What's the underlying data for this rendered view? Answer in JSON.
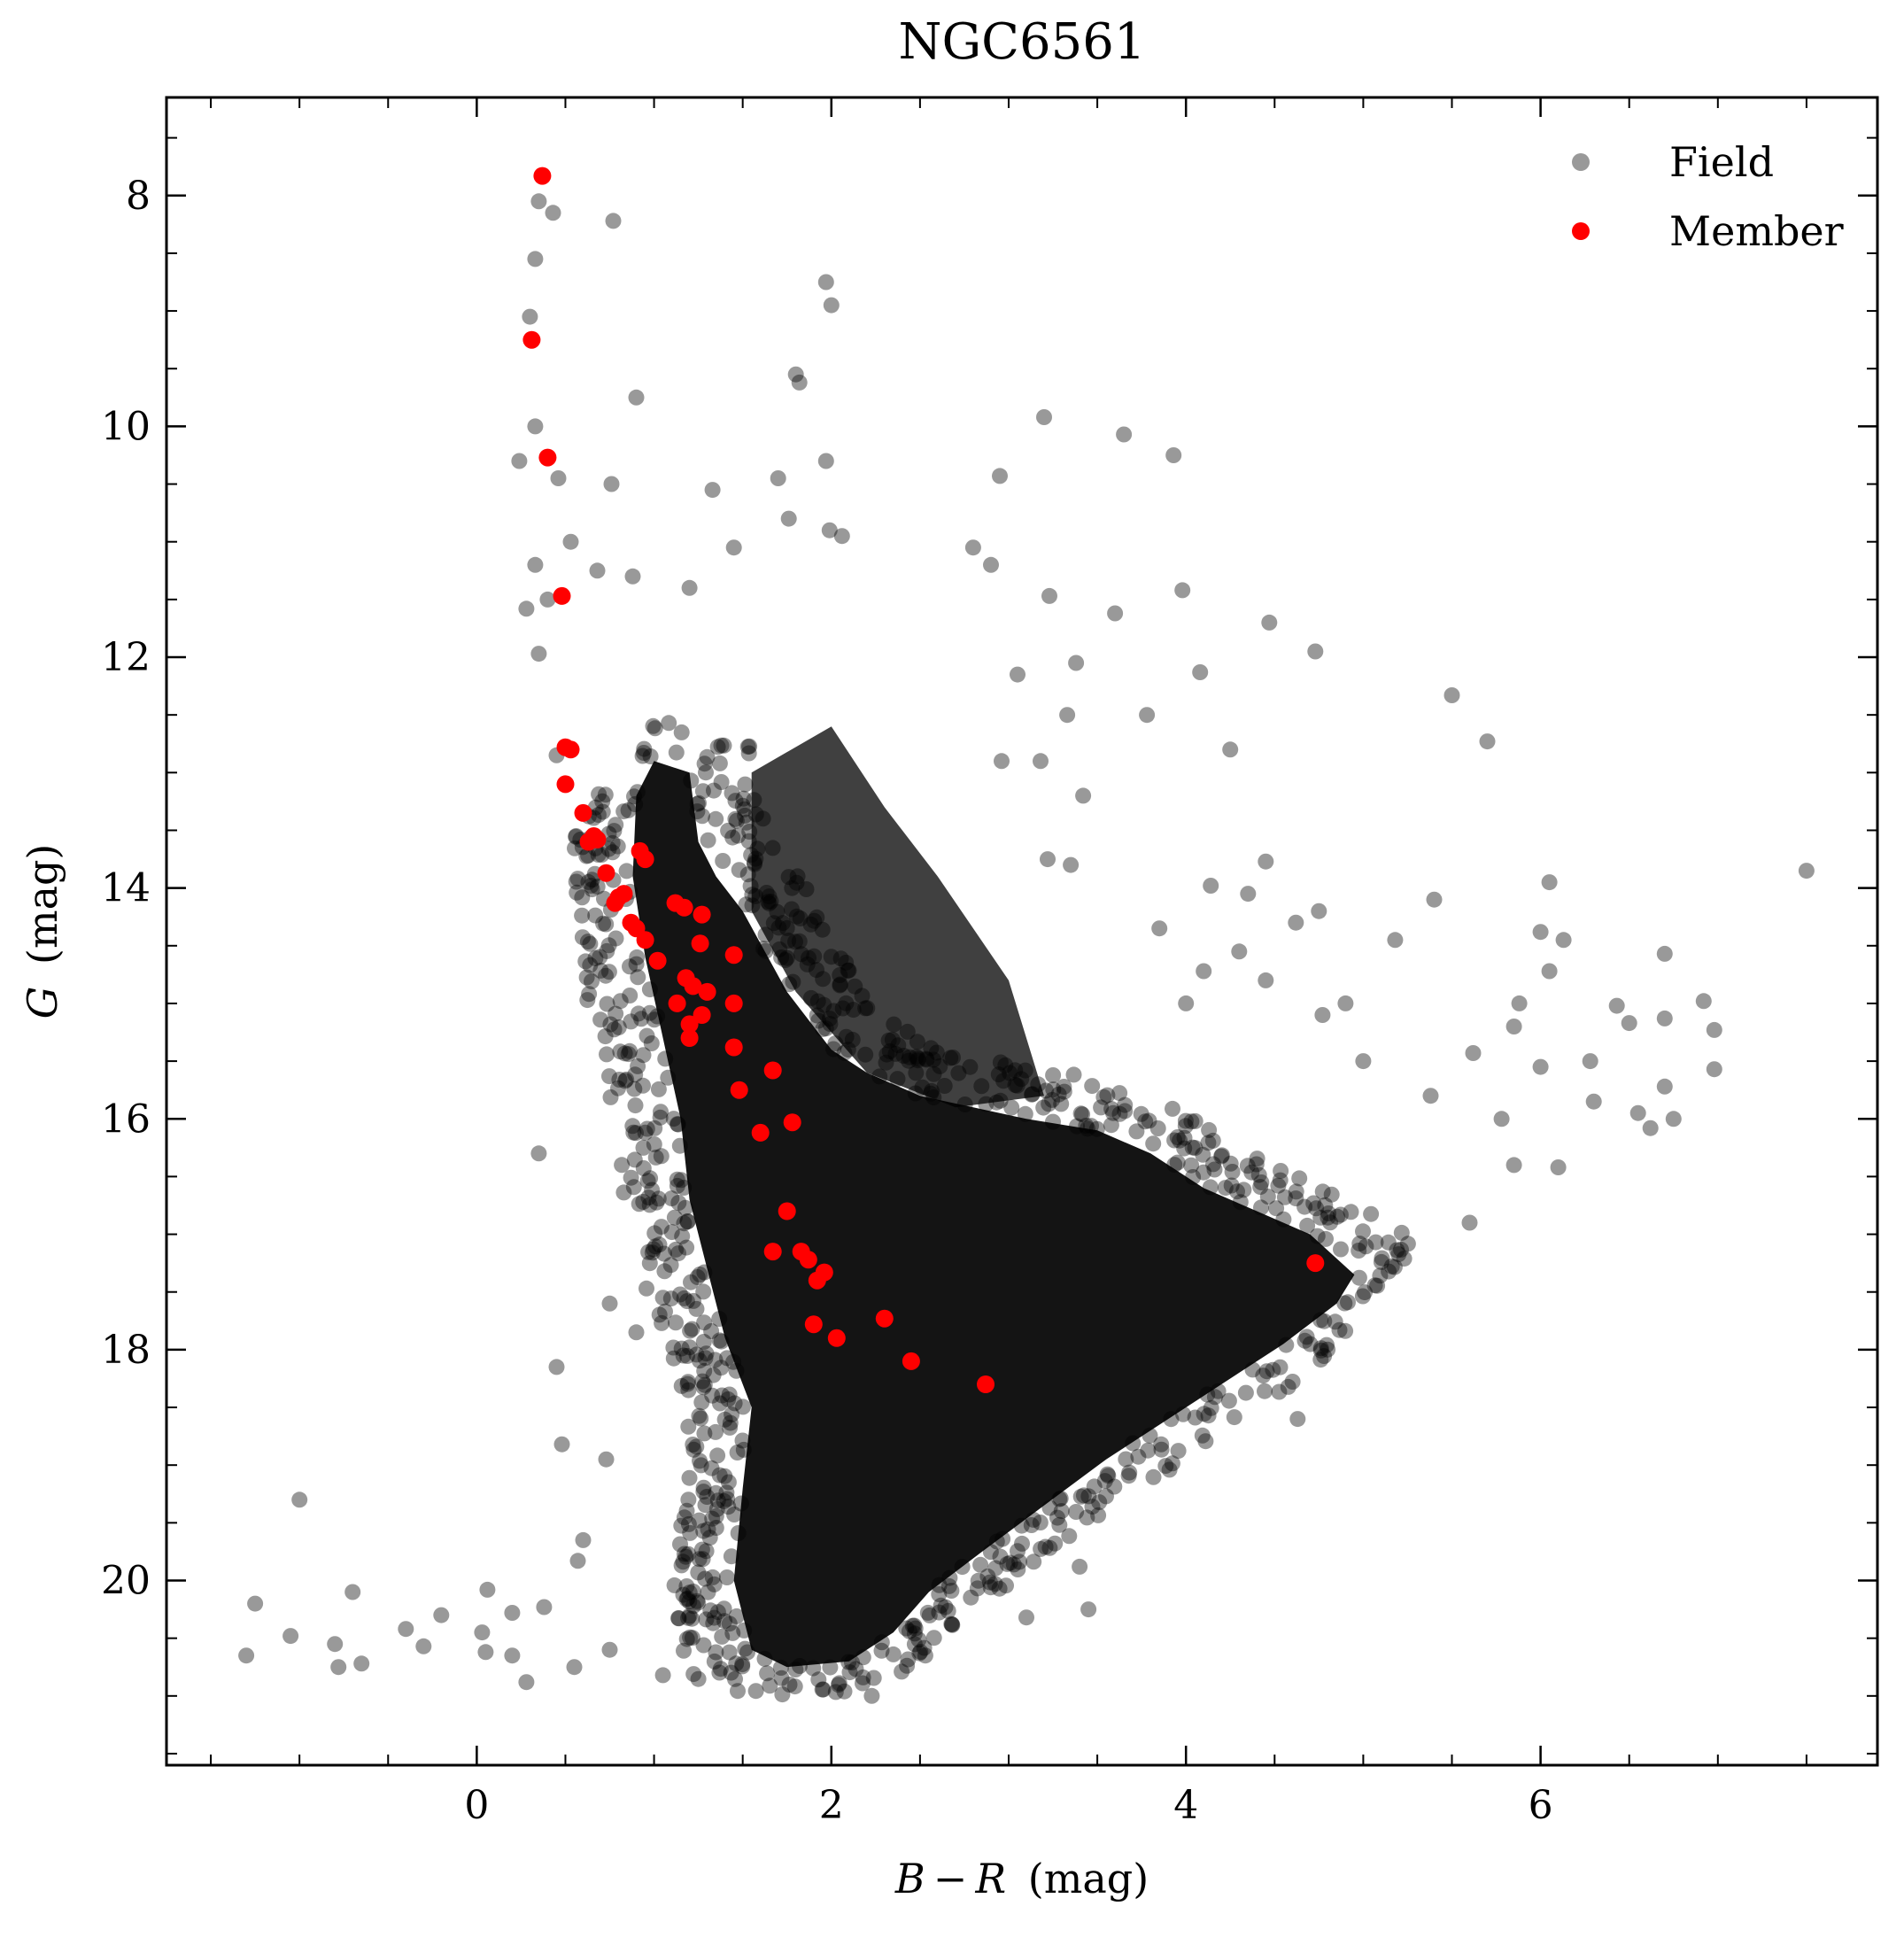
{
  "chart_data": {
    "type": "scatter",
    "title": "NGC6561",
    "xlabel": {
      "var": "B − R",
      "unit": "(mag)"
    },
    "ylabel": {
      "var": "G",
      "unit": "(mag)"
    },
    "xlim": [
      -1.75,
      7.9
    ],
    "ylim": [
      21.6,
      7.15
    ],
    "y_inverted": true,
    "grid": false,
    "legend_position": "top-right",
    "x_ticks": [
      0,
      2,
      4,
      6
    ],
    "x_tick_labels": [
      "0",
      "2",
      "4",
      "6"
    ],
    "y_ticks": [
      8,
      10,
      12,
      14,
      16,
      18,
      20
    ],
    "y_tick_labels": [
      "8",
      "10",
      "12",
      "14",
      "16",
      "18",
      "20"
    ],
    "series": [
      {
        "name": "Field",
        "color": "#000000",
        "opacity": 0.4,
        "representative_points": [
          [
            0.35,
            8.05
          ],
          [
            0.43,
            8.15
          ],
          [
            0.77,
            8.22
          ],
          [
            0.33,
            8.55
          ],
          [
            1.97,
            8.75
          ],
          [
            2.0,
            8.95
          ],
          [
            0.3,
            9.05
          ],
          [
            1.8,
            9.55
          ],
          [
            1.82,
            9.62
          ],
          [
            0.9,
            9.75
          ],
          [
            3.2,
            9.92
          ],
          [
            3.65,
            10.07
          ],
          [
            0.33,
            10.0
          ],
          [
            0.24,
            10.3
          ],
          [
            1.97,
            10.3
          ],
          [
            3.93,
            10.25
          ],
          [
            2.95,
            10.43
          ],
          [
            0.46,
            10.45
          ],
          [
            0.76,
            10.5
          ],
          [
            1.33,
            10.55
          ],
          [
            1.7,
            10.45
          ],
          [
            1.76,
            10.8
          ],
          [
            1.99,
            10.9
          ],
          [
            2.06,
            10.95
          ],
          [
            1.45,
            11.05
          ],
          [
            0.53,
            11.0
          ],
          [
            2.8,
            11.05
          ],
          [
            0.33,
            11.2
          ],
          [
            0.68,
            11.25
          ],
          [
            2.9,
            11.2
          ],
          [
            0.88,
            11.3
          ],
          [
            1.2,
            11.4
          ],
          [
            3.23,
            11.47
          ],
          [
            3.98,
            11.42
          ],
          [
            0.28,
            11.58
          ],
          [
            0.4,
            11.5
          ],
          [
            3.6,
            11.62
          ],
          [
            4.47,
            11.7
          ],
          [
            4.73,
            11.95
          ],
          [
            0.35,
            11.97
          ],
          [
            3.05,
            12.15
          ],
          [
            4.08,
            12.13
          ],
          [
            3.38,
            12.05
          ],
          [
            5.5,
            12.33
          ],
          [
            3.33,
            12.5
          ],
          [
            3.78,
            12.5
          ],
          [
            5.7,
            12.73
          ],
          [
            4.25,
            12.8
          ],
          [
            0.45,
            12.85
          ],
          [
            2.96,
            12.9
          ],
          [
            3.18,
            12.9
          ],
          [
            3.42,
            13.2
          ],
          [
            0.56,
            13.55
          ],
          [
            3.22,
            13.75
          ],
          [
            3.35,
            13.8
          ],
          [
            4.45,
            13.77
          ],
          [
            7.5,
            13.85
          ],
          [
            4.14,
            13.98
          ],
          [
            6.05,
            13.95
          ],
          [
            4.35,
            14.05
          ],
          [
            4.75,
            14.2
          ],
          [
            5.4,
            14.1
          ],
          [
            4.62,
            14.3
          ],
          [
            3.85,
            14.35
          ],
          [
            6.0,
            14.38
          ],
          [
            6.13,
            14.45
          ],
          [
            5.18,
            14.45
          ],
          [
            4.3,
            14.55
          ],
          [
            6.7,
            14.57
          ],
          [
            6.05,
            14.72
          ],
          [
            4.1,
            14.72
          ],
          [
            4.45,
            14.8
          ],
          [
            4.0,
            15.0
          ],
          [
            4.9,
            15.0
          ],
          [
            5.88,
            15.0
          ],
          [
            6.43,
            15.02
          ],
          [
            6.92,
            14.98
          ],
          [
            4.77,
            15.1
          ],
          [
            5.85,
            15.2
          ],
          [
            6.5,
            15.17
          ],
          [
            6.98,
            15.23
          ],
          [
            6.7,
            15.13
          ],
          [
            5.0,
            15.5
          ],
          [
            5.62,
            15.43
          ],
          [
            6.28,
            15.5
          ],
          [
            6.0,
            15.55
          ],
          [
            6.98,
            15.57
          ],
          [
            6.7,
            15.72
          ],
          [
            5.38,
            15.8
          ],
          [
            6.3,
            15.85
          ],
          [
            6.55,
            15.95
          ],
          [
            6.75,
            16.0
          ],
          [
            6.62,
            16.08
          ],
          [
            5.78,
            16.0
          ],
          [
            0.35,
            16.3
          ],
          [
            5.85,
            16.4
          ],
          [
            6.1,
            16.42
          ],
          [
            5.6,
            16.9
          ],
          [
            0.75,
            17.6
          ],
          [
            1.05,
            17.55
          ],
          [
            0.9,
            17.85
          ],
          [
            4.63,
            18.6
          ],
          [
            0.45,
            18.15
          ],
          [
            0.48,
            18.82
          ],
          [
            0.73,
            18.95
          ],
          [
            -1.0,
            19.3
          ],
          [
            0.6,
            19.65
          ],
          [
            0.57,
            19.83
          ],
          [
            -1.25,
            20.2
          ],
          [
            -0.7,
            20.1
          ],
          [
            0.06,
            20.08
          ],
          [
            -0.2,
            20.3
          ],
          [
            0.2,
            20.28
          ],
          [
            0.38,
            20.23
          ],
          [
            -1.05,
            20.48
          ],
          [
            -0.8,
            20.55
          ],
          [
            -0.4,
            20.42
          ],
          [
            -0.3,
            20.57
          ],
          [
            0.03,
            20.45
          ],
          [
            -1.3,
            20.65
          ],
          [
            -0.78,
            20.75
          ],
          [
            -0.65,
            20.72
          ],
          [
            0.05,
            20.62
          ],
          [
            0.2,
            20.65
          ],
          [
            0.28,
            20.88
          ],
          [
            0.55,
            20.75
          ],
          [
            0.75,
            20.6
          ],
          [
            1.05,
            20.82
          ],
          [
            2.53,
            20.65
          ],
          [
            3.1,
            20.32
          ],
          [
            3.45,
            20.25
          ],
          [
            3.4,
            19.88
          ]
        ]
      },
      {
        "name": "Member",
        "color": "#ff0000",
        "opacity": 1.0,
        "points": [
          [
            0.37,
            7.83
          ],
          [
            0.31,
            9.25
          ],
          [
            0.4,
            10.27
          ],
          [
            0.48,
            11.47
          ],
          [
            0.5,
            12.78
          ],
          [
            0.53,
            12.8
          ],
          [
            0.5,
            13.1
          ],
          [
            0.6,
            13.35
          ],
          [
            0.63,
            13.6
          ],
          [
            0.66,
            13.55
          ],
          [
            0.68,
            13.58
          ],
          [
            0.73,
            13.87
          ],
          [
            0.92,
            13.68
          ],
          [
            0.95,
            13.75
          ],
          [
            0.78,
            14.13
          ],
          [
            0.8,
            14.08
          ],
          [
            0.83,
            14.05
          ],
          [
            0.87,
            14.3
          ],
          [
            0.9,
            14.35
          ],
          [
            0.95,
            14.45
          ],
          [
            1.02,
            14.63
          ],
          [
            1.12,
            14.13
          ],
          [
            1.17,
            14.17
          ],
          [
            1.27,
            14.23
          ],
          [
            1.26,
            14.48
          ],
          [
            1.45,
            14.58
          ],
          [
            1.18,
            14.78
          ],
          [
            1.22,
            14.85
          ],
          [
            1.3,
            14.9
          ],
          [
            1.45,
            15.0
          ],
          [
            1.13,
            15.0
          ],
          [
            1.2,
            15.18
          ],
          [
            1.27,
            15.1
          ],
          [
            1.2,
            15.3
          ],
          [
            1.45,
            15.38
          ],
          [
            1.48,
            15.75
          ],
          [
            1.67,
            15.58
          ],
          [
            1.78,
            16.03
          ],
          [
            1.6,
            16.12
          ],
          [
            1.75,
            16.8
          ],
          [
            1.67,
            17.15
          ],
          [
            1.83,
            17.15
          ],
          [
            1.87,
            17.22
          ],
          [
            1.92,
            17.4
          ],
          [
            1.96,
            17.33
          ],
          [
            1.9,
            17.78
          ],
          [
            2.03,
            17.9
          ],
          [
            2.3,
            17.73
          ],
          [
            2.45,
            18.1
          ],
          [
            2.87,
            18.3
          ],
          [
            4.73,
            17.25
          ]
        ]
      }
    ],
    "dense_region_polygon": [
      [
        0.9,
        13.2
      ],
      [
        1.0,
        12.9
      ],
      [
        1.2,
        13.0
      ],
      [
        1.25,
        13.6
      ],
      [
        1.35,
        13.9
      ],
      [
        1.5,
        14.2
      ],
      [
        1.75,
        14.9
      ],
      [
        2.0,
        15.4
      ],
      [
        2.2,
        15.6
      ],
      [
        2.5,
        15.8
      ],
      [
        2.8,
        15.9
      ],
      [
        3.1,
        16.0
      ],
      [
        3.5,
        16.1
      ],
      [
        3.8,
        16.3
      ],
      [
        4.1,
        16.6
      ],
      [
        4.4,
        16.8
      ],
      [
        4.7,
        17.0
      ],
      [
        4.95,
        17.35
      ],
      [
        4.85,
        17.6
      ],
      [
        4.55,
        17.95
      ],
      [
        4.2,
        18.3
      ],
      [
        3.85,
        18.65
      ],
      [
        3.55,
        18.95
      ],
      [
        3.2,
        19.35
      ],
      [
        2.85,
        19.75
      ],
      [
        2.55,
        20.1
      ],
      [
        2.35,
        20.45
      ],
      [
        2.1,
        20.7
      ],
      [
        1.75,
        20.75
      ],
      [
        1.55,
        20.6
      ],
      [
        1.45,
        20.0
      ],
      [
        1.5,
        19.2
      ],
      [
        1.55,
        18.5
      ],
      [
        1.4,
        17.9
      ],
      [
        1.3,
        17.3
      ],
      [
        1.2,
        16.7
      ],
      [
        1.15,
        16.0
      ],
      [
        1.05,
        15.3
      ],
      [
        0.95,
        14.6
      ],
      [
        0.88,
        13.9
      ]
    ],
    "dense_region_secondary": [
      [
        1.55,
        13.0
      ],
      [
        2.0,
        12.6
      ],
      [
        2.3,
        13.3
      ],
      [
        2.6,
        13.9
      ],
      [
        3.0,
        14.8
      ],
      [
        3.2,
        15.8
      ],
      [
        2.7,
        15.9
      ],
      [
        2.2,
        15.6
      ],
      [
        1.8,
        14.9
      ],
      [
        1.55,
        14.2
      ]
    ]
  }
}
